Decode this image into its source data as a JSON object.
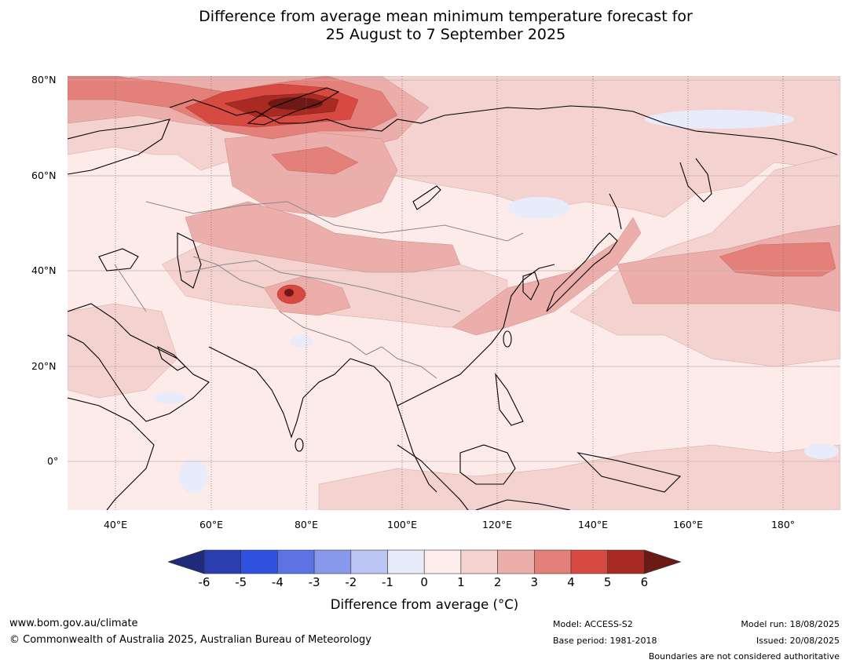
{
  "title": {
    "line1": "Difference from average mean minimum temperature forecast for",
    "line2": "25 August to 7 September 2025"
  },
  "map": {
    "lat_labels": [
      "80°N",
      "60°N",
      "40°N",
      "20°N",
      "0°"
    ],
    "lon_labels": [
      "40°E",
      "60°E",
      "80°E",
      "100°E",
      "120°E",
      "140°E",
      "160°E",
      "180°"
    ],
    "colors": {
      "anomaly_0_1": "#fcebe8",
      "anomaly_1_2": "#f4d2cf",
      "anomaly_2_3": "#ecaeaa",
      "anomaly_3_4": "#e4807a",
      "anomaly_4_5": "#d64a42",
      "anomaly_5_6": "#a82a22",
      "anomaly_6_plus": "#6e1a14",
      "anomaly_neg1_0": "#e8ecfa",
      "coastline": "#000000",
      "borders": "#888888"
    }
  },
  "legend": {
    "tick_labels": [
      "-6",
      "-5",
      "-4",
      "-3",
      "-2",
      "-1",
      "0",
      "1",
      "2",
      "3",
      "4",
      "5",
      "6"
    ],
    "colors": [
      "#1f2a7a",
      "#2a3eb0",
      "#3050e0",
      "#5d72e3",
      "#8898ea",
      "#bcc6f4",
      "#e8ecfa",
      "#fdeceb",
      "#f4d2cf",
      "#ecaeaa",
      "#e4807a",
      "#d64a42",
      "#a82a22",
      "#6e1a14"
    ],
    "label": "Difference from average (°C)"
  },
  "footer": {
    "website": "www.bom.gov.au/climate",
    "copyright": "© Commonwealth of Australia 2025, Australian Bureau of Meteorology",
    "model": "Model: ACCESS-S2",
    "base_period": "Base period: 1981-2018",
    "model_run": "Model run: 18/08/2025",
    "issued": "Issued: 20/08/2025",
    "disclaimer": "Boundaries are not considered authoritative"
  }
}
